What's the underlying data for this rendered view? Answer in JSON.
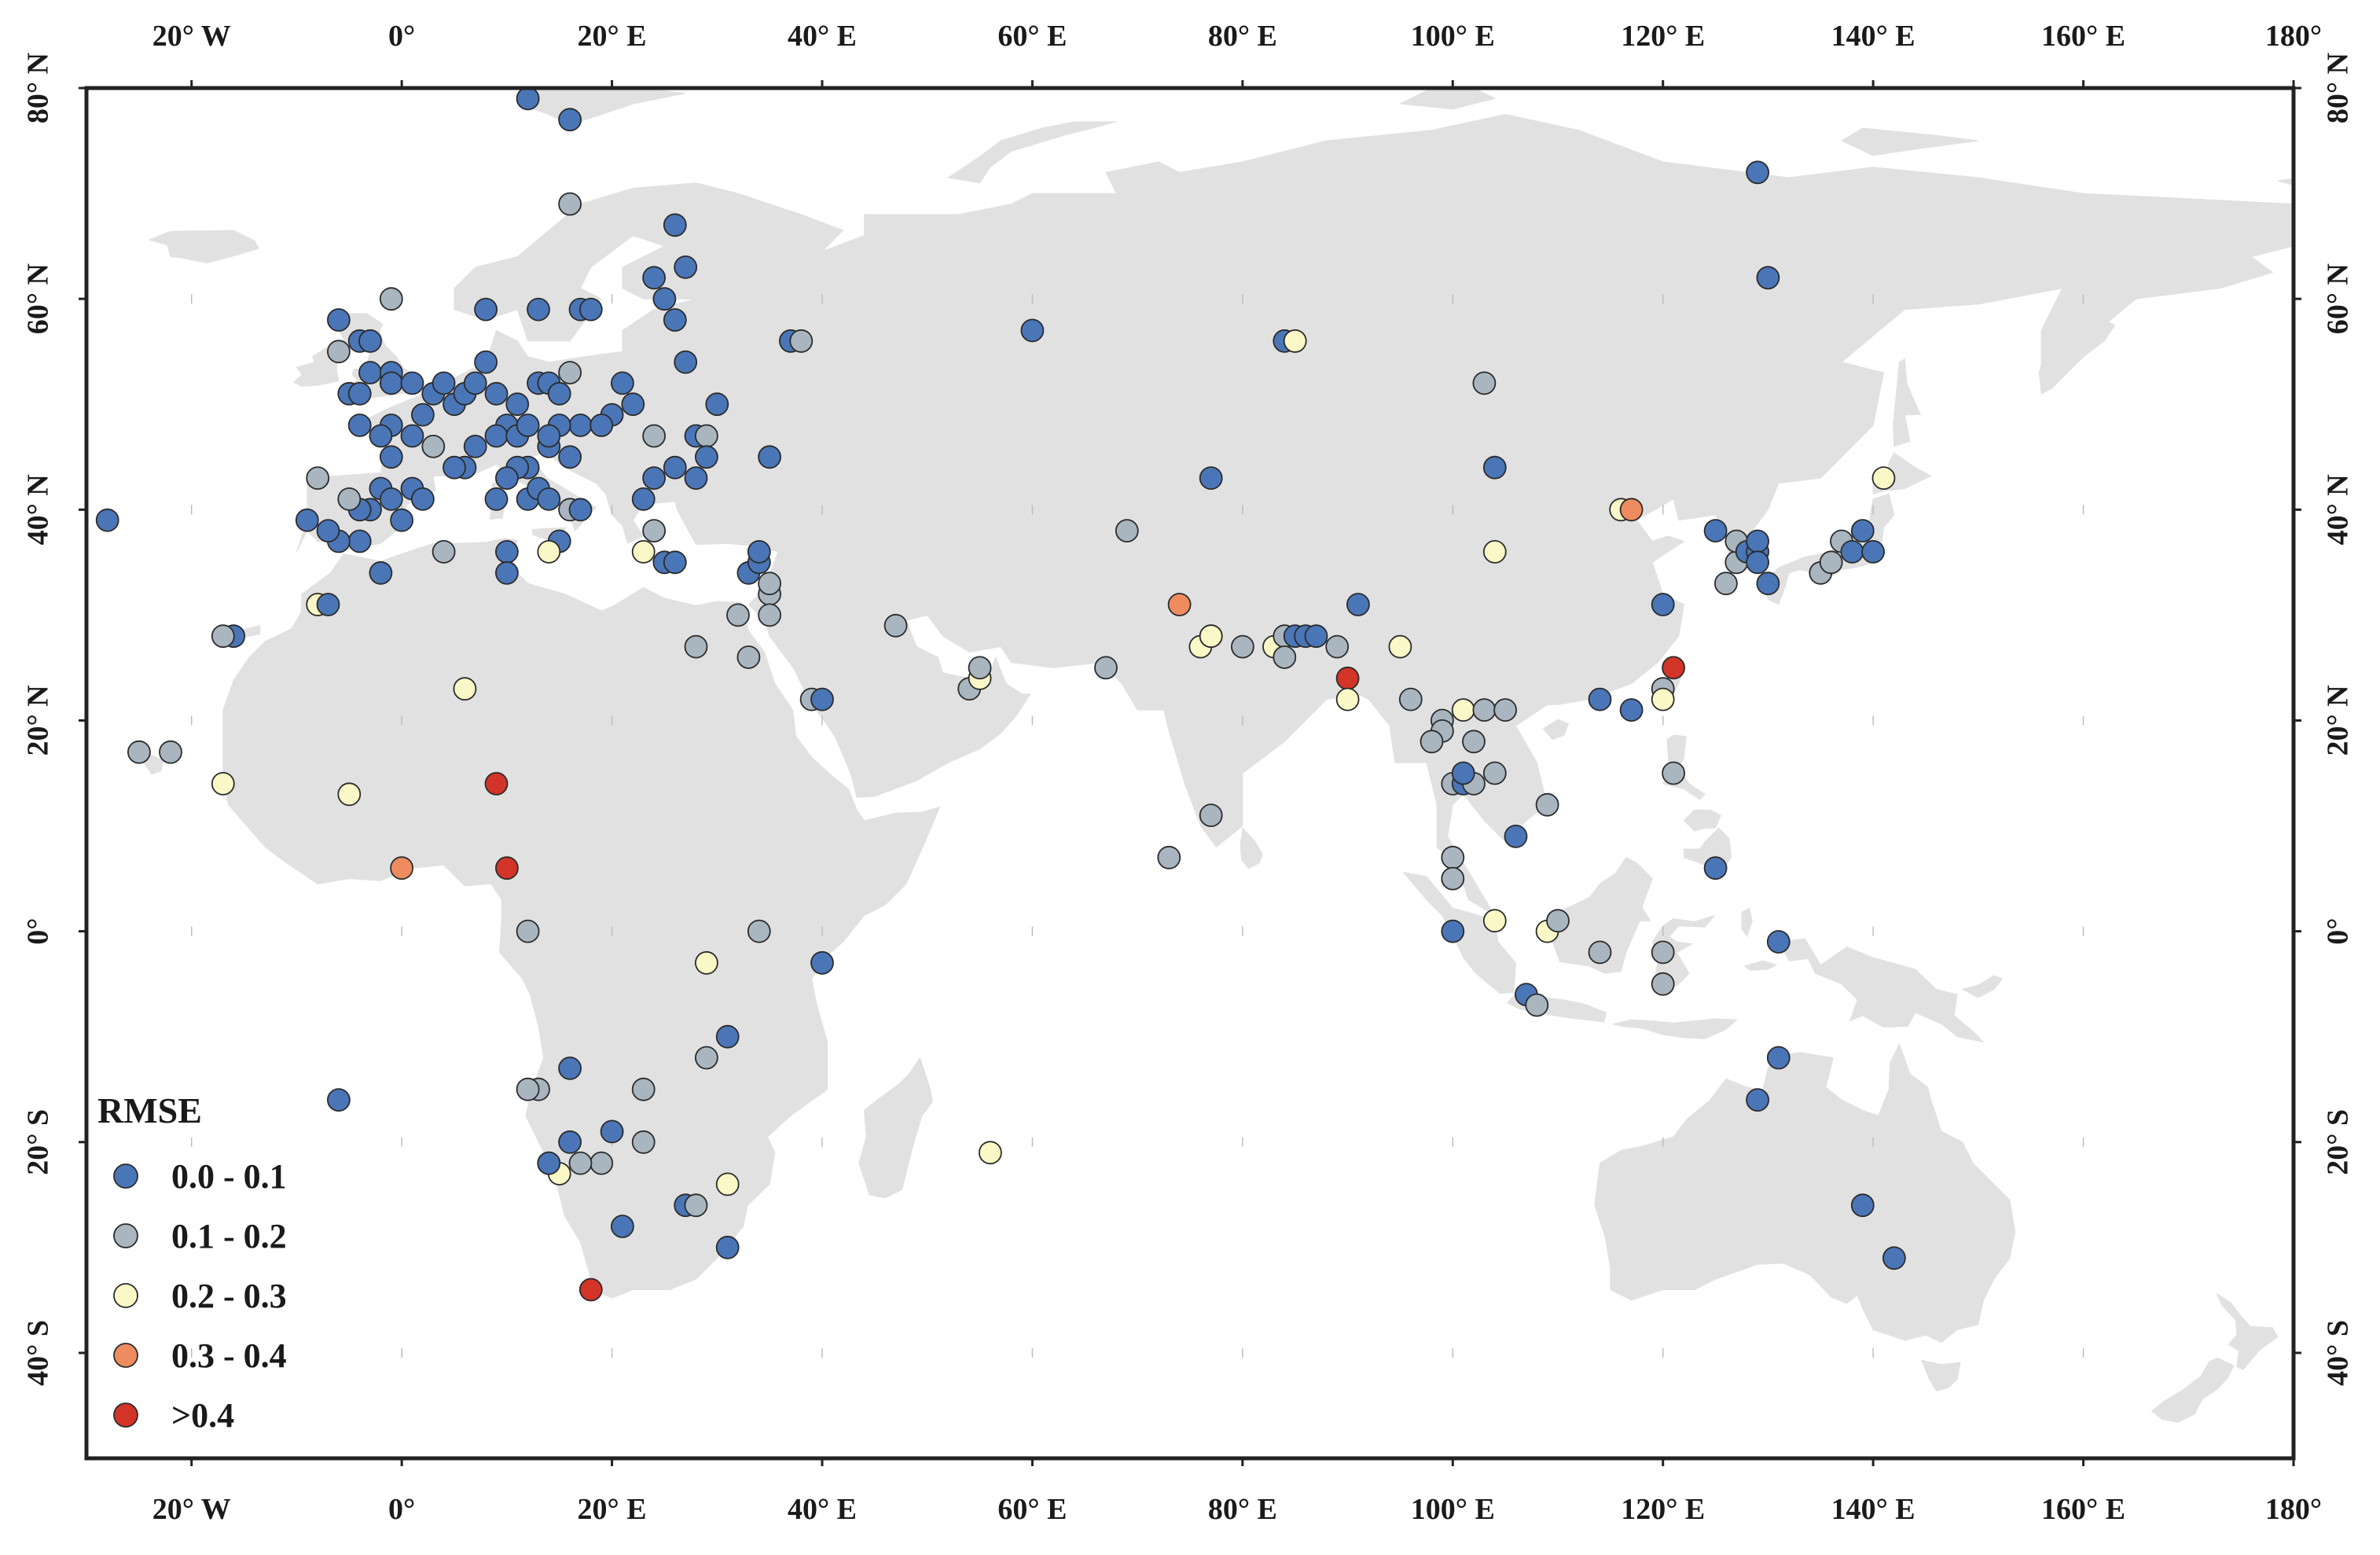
{
  "map": {
    "extent": {
      "lon": [
        -30,
        180
      ],
      "lat": [
        -50,
        80
      ]
    },
    "land_color": "#e1e1e1",
    "frame_color": "#222222",
    "x_ticks": [
      {
        "value": -20,
        "label": "20° W"
      },
      {
        "value": 0,
        "label": "0°"
      },
      {
        "value": 20,
        "label": "20° E"
      },
      {
        "value": 40,
        "label": "40° E"
      },
      {
        "value": 60,
        "label": "60° E"
      },
      {
        "value": 80,
        "label": "80° E"
      },
      {
        "value": 100,
        "label": "100° E"
      },
      {
        "value": 120,
        "label": "120° E"
      },
      {
        "value": 140,
        "label": "140° E"
      },
      {
        "value": 160,
        "label": "160° E"
      },
      {
        "value": 180,
        "label": "180°"
      }
    ],
    "y_ticks": [
      {
        "value": 80,
        "label": "80° N"
      },
      {
        "value": 60,
        "label": "60° N"
      },
      {
        "value": 40,
        "label": "40° N"
      },
      {
        "value": 20,
        "label": "20° N"
      },
      {
        "value": 0,
        "label": "0°"
      },
      {
        "value": -20,
        "label": "20° S"
      },
      {
        "value": -40,
        "label": "40° S"
      }
    ]
  },
  "legend": {
    "title": "RMSE",
    "placement": "bottom-left",
    "classes": [
      {
        "label": "0.0 - 0.1",
        "color": "#4a76b8"
      },
      {
        "label": "0.1 - 0.2",
        "color": "#a9b6bf"
      },
      {
        "label": "0.2 - 0.3",
        "color": "#fbf8c7"
      },
      {
        "label": "0.3 - 0.4",
        "color": "#ee8c5f"
      },
      {
        "label": ">0.4",
        "color": "#d23427"
      }
    ]
  },
  "chart_data": {
    "type": "scatter",
    "x_name": "longitude",
    "y_name": "latitude",
    "xlim": [
      -30,
      180
    ],
    "ylim": [
      -50,
      80
    ],
    "points": [
      [
        12,
        79,
        0
      ],
      [
        16,
        77,
        0
      ],
      [
        16,
        69,
        1
      ],
      [
        26,
        67,
        0
      ],
      [
        27,
        63,
        0
      ],
      [
        24,
        62,
        0
      ],
      [
        25,
        60,
        0
      ],
      [
        26,
        58,
        0
      ],
      [
        27,
        54,
        0
      ],
      [
        13,
        59,
        0
      ],
      [
        17,
        59,
        0
      ],
      [
        8,
        59,
        0
      ],
      [
        -6,
        58,
        0
      ],
      [
        -1,
        60,
        1
      ],
      [
        -6,
        55,
        1
      ],
      [
        -4,
        56,
        0
      ],
      [
        -3,
        56,
        0
      ],
      [
        -3,
        53,
        0
      ],
      [
        -5,
        51,
        0
      ],
      [
        -1,
        53,
        0
      ],
      [
        -1,
        52,
        0
      ],
      [
        1,
        52,
        0
      ],
      [
        3,
        51,
        0
      ],
      [
        4,
        52,
        0
      ],
      [
        5,
        50,
        0
      ],
      [
        6,
        51,
        0
      ],
      [
        7,
        52,
        0
      ],
      [
        8,
        54,
        0
      ],
      [
        9,
        51,
        0
      ],
      [
        10,
        48,
        0
      ],
      [
        11,
        50,
        0
      ],
      [
        13,
        52,
        0
      ],
      [
        14,
        52,
        0
      ],
      [
        15,
        51,
        0
      ],
      [
        16,
        53,
        1
      ],
      [
        18,
        59,
        0
      ],
      [
        21,
        52,
        0
      ],
      [
        22,
        50,
        0
      ],
      [
        20,
        49,
        0
      ],
      [
        24,
        47,
        1
      ],
      [
        28,
        47,
        0
      ],
      [
        29,
        47,
        1
      ],
      [
        30,
        50,
        0
      ],
      [
        35,
        45,
        0
      ],
      [
        37,
        56,
        0
      ],
      [
        38,
        56,
        1
      ],
      [
        26,
        44,
        0
      ],
      [
        29,
        45,
        0
      ],
      [
        28,
        43,
        0
      ],
      [
        24,
        43,
        0
      ],
      [
        23,
        41,
        0
      ],
      [
        24,
        38,
        1
      ],
      [
        23,
        36,
        2
      ],
      [
        25,
        35,
        0
      ],
      [
        26,
        35,
        0
      ],
      [
        17,
        48,
        0
      ],
      [
        19,
        48,
        0
      ],
      [
        15,
        48,
        0
      ],
      [
        16,
        45,
        0
      ],
      [
        14,
        46,
        0
      ],
      [
        12,
        44,
        0
      ],
      [
        11,
        44,
        0
      ],
      [
        9,
        47,
        0
      ],
      [
        7,
        46,
        0
      ],
      [
        6,
        44,
        0
      ],
      [
        5,
        44,
        0
      ],
      [
        3,
        46,
        1
      ],
      [
        2,
        49,
        0
      ],
      [
        1,
        47,
        0
      ],
      [
        -1,
        48,
        0
      ],
      [
        -2,
        47,
        0
      ],
      [
        -1,
        45,
        0
      ],
      [
        -4,
        48,
        0
      ],
      [
        -4,
        51,
        0
      ],
      [
        -3,
        40,
        0
      ],
      [
        -2,
        42,
        0
      ],
      [
        -1,
        41,
        0
      ],
      [
        0,
        39,
        0
      ],
      [
        1,
        42,
        0
      ],
      [
        2,
        41,
        0
      ],
      [
        -4,
        37,
        0
      ],
      [
        -4,
        40,
        0
      ],
      [
        -6,
        37,
        0
      ],
      [
        -7,
        38,
        0
      ],
      [
        -9,
        39,
        0
      ],
      [
        -8,
        43,
        1
      ],
      [
        -5,
        41,
        1
      ],
      [
        -2,
        34,
        0
      ],
      [
        4,
        36,
        1
      ],
      [
        9,
        41,
        0
      ],
      [
        10,
        43,
        0
      ],
      [
        12,
        41,
        0
      ],
      [
        13,
        42,
        0
      ],
      [
        14,
        41,
        0
      ],
      [
        15,
        37,
        0
      ],
      [
        16,
        40,
        1
      ],
      [
        17,
        40,
        0
      ],
      [
        14,
        36,
        2
      ],
      [
        10,
        36,
        0
      ],
      [
        10,
        34,
        0
      ],
      [
        11,
        47,
        0
      ],
      [
        12,
        48,
        0
      ],
      [
        14,
        47,
        0
      ],
      [
        -28,
        39,
        0
      ],
      [
        -16,
        28,
        0
      ],
      [
        -17,
        28,
        1
      ],
      [
        -8,
        31,
        2
      ],
      [
        -7,
        31,
        0
      ],
      [
        -22,
        17,
        1
      ],
      [
        -25,
        17,
        1
      ],
      [
        -17,
        14,
        2
      ],
      [
        -5,
        13,
        2
      ],
      [
        6,
        23,
        2
      ],
      [
        9,
        14,
        4
      ],
      [
        10,
        6,
        4
      ],
      [
        0,
        6,
        3
      ],
      [
        12,
        0,
        1
      ],
      [
        29,
        -3,
        2
      ],
      [
        34,
        0,
        1
      ],
      [
        40,
        -3,
        0
      ],
      [
        31,
        -10,
        0
      ],
      [
        29,
        -12,
        1
      ],
      [
        23,
        -15,
        1
      ],
      [
        23,
        -20,
        1
      ],
      [
        20,
        -19,
        0
      ],
      [
        19,
        -22,
        1
      ],
      [
        17,
        -22,
        1
      ],
      [
        14,
        -22,
        0
      ],
      [
        15,
        -23,
        2
      ],
      [
        16,
        -20,
        0
      ],
      [
        16,
        -13,
        0
      ],
      [
        13,
        -15,
        1
      ],
      [
        12,
        -15,
        1
      ],
      [
        14,
        -22,
        0
      ],
      [
        21,
        -28,
        0
      ],
      [
        18,
        -34,
        4
      ],
      [
        27,
        -26,
        0
      ],
      [
        28,
        -26,
        1
      ],
      [
        31,
        -24,
        2
      ],
      [
        31,
        -30,
        0
      ],
      [
        -6,
        -16,
        0
      ],
      [
        32,
        30,
        1
      ],
      [
        33,
        26,
        1
      ],
      [
        33,
        34,
        0
      ],
      [
        34,
        35,
        0
      ],
      [
        34,
        36,
        0
      ],
      [
        35,
        32,
        1
      ],
      [
        35,
        33,
        1
      ],
      [
        35,
        30,
        1
      ],
      [
        28,
        27,
        1
      ],
      [
        39,
        22,
        1
      ],
      [
        40,
        22,
        0
      ],
      [
        47,
        29,
        1
      ],
      [
        54,
        23,
        1
      ],
      [
        55,
        24,
        2
      ],
      [
        55,
        25,
        1
      ],
      [
        60,
        57,
        0
      ],
      [
        67,
        25,
        1
      ],
      [
        69,
        38,
        1
      ],
      [
        77,
        43,
        0
      ],
      [
        74,
        31,
        3
      ],
      [
        76,
        27,
        2
      ],
      [
        77,
        28,
        1
      ],
      [
        77,
        28,
        2
      ],
      [
        77,
        11,
        1
      ],
      [
        73,
        7,
        1
      ],
      [
        80,
        27,
        1
      ],
      [
        83,
        27,
        2
      ],
      [
        84,
        28,
        1
      ],
      [
        84,
        26,
        1
      ],
      [
        85,
        28,
        0
      ],
      [
        86,
        28,
        0
      ],
      [
        87,
        28,
        0
      ],
      [
        84,
        56,
        0
      ],
      [
        85,
        56,
        2
      ],
      [
        89,
        27,
        1
      ],
      [
        90,
        24,
        4
      ],
      [
        90,
        22,
        2
      ],
      [
        91,
        31,
        0
      ],
      [
        95,
        27,
        2
      ],
      [
        96,
        22,
        1
      ],
      [
        99,
        20,
        1
      ],
      [
        99,
        19,
        1
      ],
      [
        98,
        18,
        1
      ],
      [
        101,
        21,
        2
      ],
      [
        102,
        18,
        1
      ],
      [
        103,
        21,
        1
      ],
      [
        105,
        21,
        1
      ],
      [
        100,
        14,
        1
      ],
      [
        101,
        14,
        0
      ],
      [
        102,
        14,
        1
      ],
      [
        104,
        15,
        1
      ],
      [
        101,
        15,
        0
      ],
      [
        106,
        9,
        0
      ],
      [
        109,
        12,
        1
      ],
      [
        103,
        52,
        1
      ],
      [
        104,
        44,
        0
      ],
      [
        104,
        36,
        2
      ],
      [
        100,
        7,
        1
      ],
      [
        100,
        5,
        1
      ],
      [
        100,
        0,
        0
      ],
      [
        104,
        1,
        2
      ],
      [
        109,
        0,
        2
      ],
      [
        110,
        1,
        1
      ],
      [
        114,
        -2,
        1
      ],
      [
        107,
        -6,
        0
      ],
      [
        108,
        -7,
        1
      ],
      [
        114,
        22,
        0
      ],
      [
        117,
        21,
        0
      ],
      [
        116,
        40,
        2
      ],
      [
        117,
        40,
        3
      ],
      [
        120,
        31,
        0
      ],
      [
        120,
        23,
        1
      ],
      [
        121,
        25,
        4
      ],
      [
        120,
        22,
        2
      ],
      [
        121,
        15,
        1
      ],
      [
        120,
        -2,
        1
      ],
      [
        120,
        -5,
        1
      ],
      [
        125,
        6,
        0
      ],
      [
        125,
        38,
        0
      ],
      [
        126,
        33,
        1
      ],
      [
        127,
        35,
        1
      ],
      [
        127,
        37,
        1
      ],
      [
        128,
        36,
        0
      ],
      [
        129,
        36,
        0
      ],
      [
        129,
        37,
        0
      ],
      [
        129,
        35,
        0
      ],
      [
        130,
        33,
        0
      ],
      [
        131,
        -1,
        0
      ],
      [
        129,
        72,
        0
      ],
      [
        130,
        62,
        0
      ],
      [
        135,
        34,
        1
      ],
      [
        136,
        35,
        1
      ],
      [
        137,
        37,
        1
      ],
      [
        138,
        36,
        0
      ],
      [
        139,
        38,
        0
      ],
      [
        140,
        36,
        0
      ],
      [
        141,
        43,
        2
      ],
      [
        131,
        -12,
        0
      ],
      [
        129,
        -16,
        0
      ],
      [
        139,
        -26,
        0
      ],
      [
        142,
        -31,
        0
      ],
      [
        56,
        -21,
        2
      ]
    ]
  }
}
